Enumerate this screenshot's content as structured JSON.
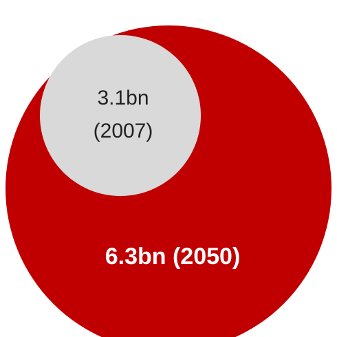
{
  "chart_data": {
    "type": "bubble",
    "series": [
      {
        "value": 6.3,
        "unit": "bn",
        "year": "2050",
        "label": "6.3bn (2050)",
        "color": "#c00000",
        "label_color": "#ffffff"
      },
      {
        "value": 3.1,
        "unit": "bn",
        "year": "2007",
        "label_line1": "3.1bn",
        "label_line2": "(2007)",
        "color": "#d9d9d9",
        "label_color": "#222222"
      }
    ]
  }
}
